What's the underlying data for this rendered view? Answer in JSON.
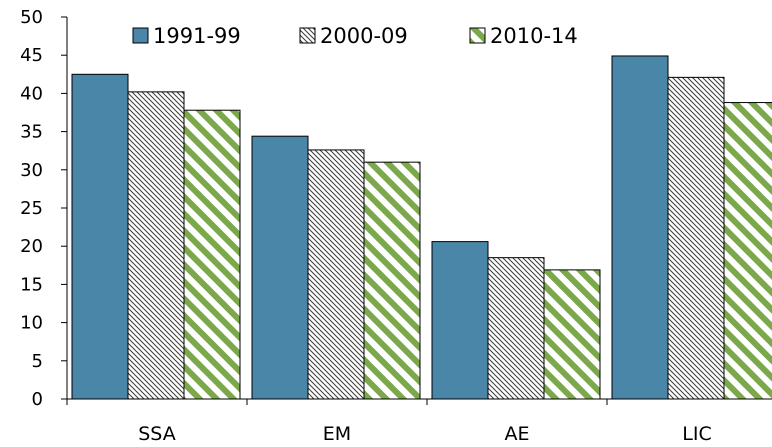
{
  "chart_data": {
    "type": "bar",
    "title": "",
    "xlabel": "",
    "ylabel": "",
    "categories": [
      "SSA",
      "EM",
      "AE",
      "LIC"
    ],
    "series": [
      {
        "name": "1991-99",
        "values": [
          42.5,
          34.4,
          20.6,
          44.9
        ],
        "color": "#4a86a8",
        "pattern": "solid"
      },
      {
        "name": "2000-09",
        "values": [
          40.2,
          32.6,
          18.5,
          42.1
        ],
        "color": "#3a3a3a",
        "pattern": "dense-diagonal-hatch"
      },
      {
        "name": "2010-14",
        "values": [
          37.8,
          31.0,
          16.9,
          38.8
        ],
        "color": "#7aa84a",
        "pattern": "wide-diagonal-stripes"
      }
    ],
    "ylim": [
      0,
      50
    ],
    "yticks": [
      0,
      5,
      10,
      15,
      20,
      25,
      30,
      35,
      40,
      45,
      50
    ],
    "grid": false,
    "legend": "top"
  }
}
